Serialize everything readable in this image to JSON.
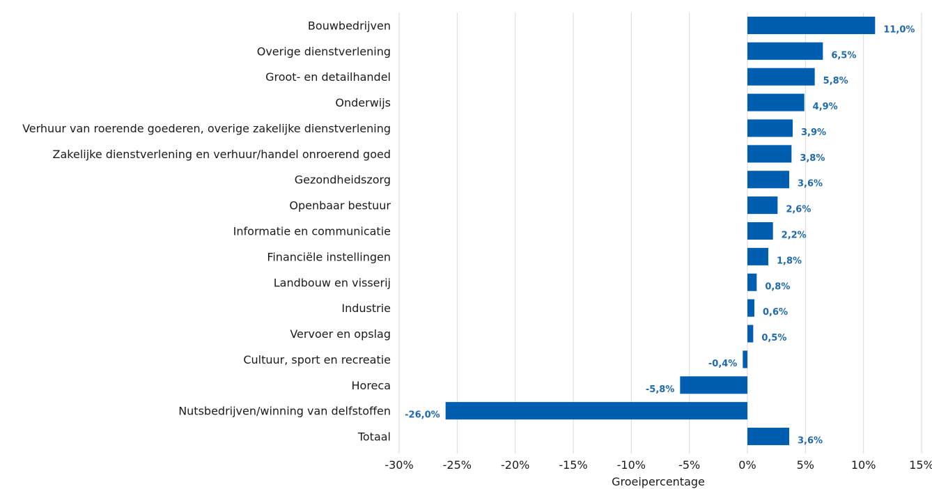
{
  "chart_data": {
    "type": "bar",
    "orientation": "horizontal",
    "title": "",
    "xlabel": "Groeipercentage",
    "ylabel": "",
    "xlim": [
      -30,
      15
    ],
    "x_ticks": [
      -30,
      -25,
      -20,
      -15,
      -10,
      -5,
      0,
      5,
      10,
      15
    ],
    "x_tick_labels": [
      "-30%",
      "-25%",
      "-20%",
      "-15%",
      "-10%",
      "-5%",
      "0%",
      "5%",
      "10%",
      "15%"
    ],
    "grid": "vertical",
    "legend": "none",
    "bar_color": "#005eb0",
    "label_color": "#1f68ad",
    "categories": [
      "Bouwbedrijven",
      "Overige dienstverlening",
      "Groot- en detailhandel",
      "Onderwijs",
      "Verhuur van roerende goederen, overige zakelijke dienstverlening",
      "Zakelijke dienstverlening en verhuur/handel onroerend goed",
      "Gezondheidszorg",
      "Openbaar bestuur",
      "Informatie en communicatie",
      "Financiële instellingen",
      "Landbouw en visserij",
      "Industrie",
      "Vervoer en opslag",
      "Cultuur, sport en recreatie",
      "Horeca",
      "Nutsbedrijven/winning van delfstoffen",
      "Totaal"
    ],
    "values": [
      11.0,
      6.5,
      5.8,
      4.9,
      3.9,
      3.8,
      3.6,
      2.6,
      2.2,
      1.8,
      0.8,
      0.6,
      0.5,
      -0.4,
      -5.8,
      -26.0,
      3.6
    ],
    "data_labels": [
      "11,0%",
      "6,5%",
      "5,8%",
      "4,9%",
      "3,9%",
      "3,8%",
      "3,6%",
      "2,6%",
      "2,2%",
      "1,8%",
      "0,8%",
      "0,6%",
      "0,5%",
      "-0,4%",
      "-5,8%",
      "-26,0%",
      "3,6%"
    ]
  }
}
